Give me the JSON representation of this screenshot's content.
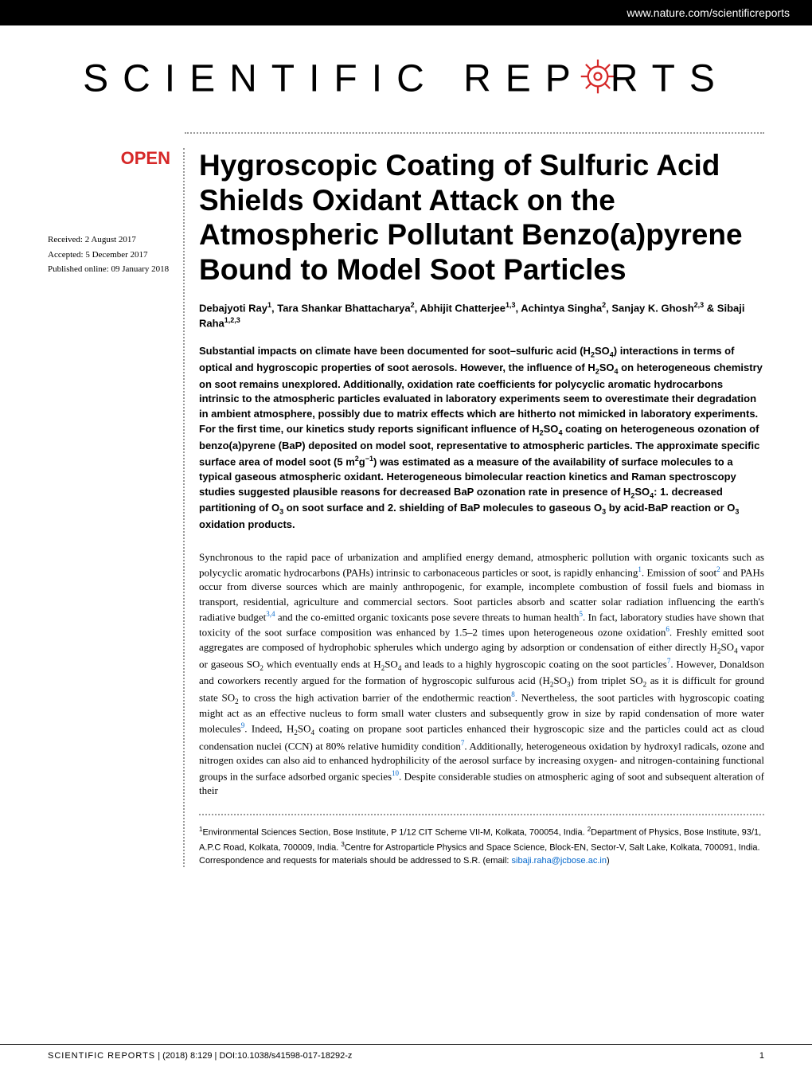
{
  "header": {
    "url": "www.nature.com/scientificreports"
  },
  "logo": {
    "part1": "SCIENTIFIC",
    "part2": "REP",
    "part3": "RTS",
    "gear_color": "#d62828"
  },
  "badge": {
    "open": "OPEN"
  },
  "dates": {
    "received": "Received: 2 August 2017",
    "accepted": "Accepted: 5 December 2017",
    "published": "Published online: 09 January 2018"
  },
  "article": {
    "title": "Hygroscopic Coating of Sulfuric Acid Shields Oxidant Attack on the Atmospheric Pollutant Benzo(a)pyrene Bound to Model Soot Particles",
    "authors_html": "Debajyoti Ray<sup>1</sup>, Tara Shankar Bhattacharya<sup>2</sup>, Abhijit Chatterjee<sup>1,3</sup>, Achintya Singha<sup>2</sup>, Sanjay K. Ghosh<sup>2,3</sup> & Sibaji Raha<sup>1,2,3</sup>",
    "abstract_html": "Substantial impacts on climate have been documented for soot–sulfuric acid (H<sub>2</sub>SO<sub>4</sub>) interactions in terms of optical and hygroscopic properties of soot aerosols. However, the influence of H<sub>2</sub>SO<sub>4</sub> on heterogeneous chemistry on soot remains unexplored. Additionally, oxidation rate coefficients for polycyclic aromatic hydrocarbons intrinsic to the atmospheric particles evaluated in laboratory experiments seem to overestimate their degradation in ambient atmosphere, possibly due to matrix effects which are hitherto not mimicked in laboratory experiments. For the first time, our kinetics study reports significant influence of H<sub>2</sub>SO<sub>4</sub> coating on heterogeneous ozonation of benzo(a)pyrene (BaP) deposited on model soot, representative to atmospheric particles. The approximate specific surface area of model soot (5 m<sup>2</sup>g<sup>−1</sup>) was estimated as a measure of the availability of surface molecules to a typical gaseous atmospheric oxidant. Heterogeneous bimolecular reaction kinetics and Raman spectroscopy studies suggested plausible reasons for decreased BaP ozonation rate in presence of H<sub>2</sub>SO<sub>4</sub>: 1. decreased partitioning of O<sub>3</sub> on soot surface and 2. shielding of BaP molecules to gaseous O<sub>3</sub> by acid-BaP reaction or O<sub>3</sub> oxidation products.",
    "body_html": "Synchronous to the rapid pace of urbanization and amplified energy demand, atmospheric pollution with organic toxicants such as polycyclic aromatic hydrocarbons (PAHs) intrinsic to carbonaceous particles or soot, is rapidly enhancing<sup>1</sup>. Emission of soot<sup>2</sup> and PAHs occur from diverse sources which are mainly anthropogenic, for example, incomplete combustion of fossil fuels and biomass in transport, residential, agriculture and commercial sectors. Soot particles absorb and scatter solar radiation influencing the earth's radiative budget<sup>3,4</sup> and the co-emitted organic toxicants pose severe threats to human health<sup>5</sup>. In fact, laboratory studies have shown that toxicity of the soot surface composition was enhanced by 1.5–2 times upon heterogeneous ozone oxidation<sup>6</sup>. Freshly emitted soot aggregates are composed of hydrophobic spherules which undergo aging by adsorption or condensation of either directly H<sub>2</sub>SO<sub>4</sub> vapor or gaseous SO<sub>2</sub> which eventually ends at H<sub>2</sub>SO<sub>4</sub> and leads to a highly hygroscopic coating on the soot particles<sup>7</sup>. However, Donaldson and coworkers recently argued for the formation of hygroscopic sulfurous acid (H<sub>2</sub>SO<sub>3</sub>) from triplet SO<sub>2</sub> as it is difficult for ground state SO<sub>2</sub> to cross the high activation barrier of the endothermic reaction<sup>8</sup>. Nevertheless, the soot particles with hygroscopic coating might act as an effective nucleus to form small water clusters and subsequently grow in size by rapid condensation of more water molecules<sup>9</sup>. Indeed, H<sub>2</sub>SO<sub>4</sub> coating on propane soot particles enhanced their hygroscopic size and the particles could act as cloud condensation nuclei (CCN) at 80% relative humidity condition<sup>7</sup>. Additionally, heterogeneous oxidation by hydroxyl radicals, ozone and nitrogen oxides can also aid to enhanced hydrophilicity of the aerosol surface by increasing oxygen- and nitrogen-containing functional groups in the surface adsorbed organic species<sup>10</sup>. Despite considerable studies on atmospheric aging of soot and subsequent alteration of their",
    "affiliations_html": "<sup>1</sup>Environmental Sciences Section, Bose Institute, P 1/12 CIT Scheme VII-M, Kolkata, 700054, India. <sup>2</sup>Department of Physics, Bose Institute, 93/1, A.P.C Road, Kolkata, 700009, India. <sup>3</sup>Centre for Astroparticle Physics and Space Science, Block-EN, Sector-V, Salt Lake, Kolkata, 700091, India. Correspondence and requests for materials should be addressed to S.R. (email: <span class=\"email\">sibaji.raha@jcbose.ac.in</span>)"
  },
  "footer": {
    "journal": "SCIENTIFIC REPORTS",
    "citation": " | (2018) 8:129 | DOI:10.1038/s41598-017-18292-z",
    "page": "1"
  }
}
